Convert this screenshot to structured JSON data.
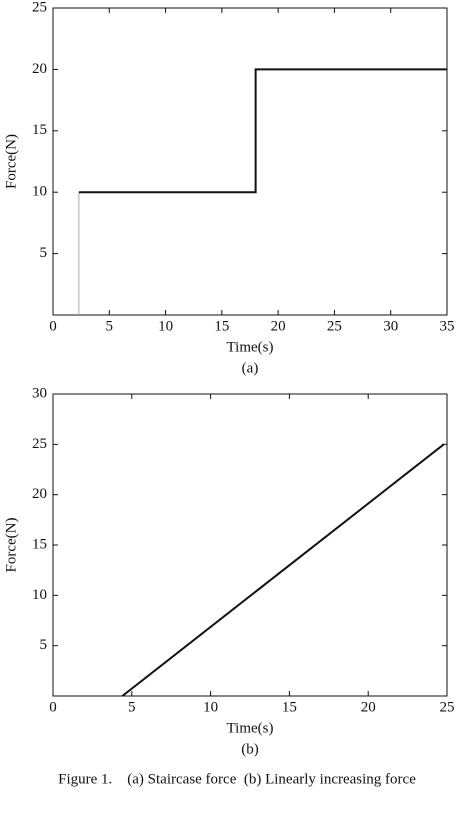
{
  "chart_data": [
    {
      "type": "line",
      "label": "(a)",
      "xlabel": "Time(s)",
      "ylabel": "Force(N)",
      "xlim": [
        0,
        35
      ],
      "xticks": [
        0,
        5,
        10,
        15,
        20,
        25,
        30,
        35
      ],
      "ylim": [
        0,
        25
      ],
      "yticks": [
        5,
        10,
        15,
        20,
        25
      ],
      "series": [
        {
          "color": "#aaaaaa",
          "x": [
            2.3,
            2.3
          ],
          "values": [
            0,
            10
          ]
        },
        {
          "color": "#111111",
          "x": [
            2.3,
            18,
            18,
            35
          ],
          "values": [
            10,
            10,
            20,
            20
          ]
        }
      ]
    },
    {
      "type": "line",
      "label": "(b)",
      "xlabel": "Time(s)",
      "ylabel": "Force(N)",
      "xlim": [
        0,
        25
      ],
      "xticks": [
        0,
        5,
        10,
        15,
        20,
        25
      ],
      "ylim": [
        0,
        30
      ],
      "yticks": [
        5,
        10,
        15,
        20,
        25,
        30
      ],
      "series": [
        {
          "color": "#111111",
          "x": [
            4.4,
            24.8
          ],
          "values": [
            0,
            25
          ]
        }
      ]
    }
  ],
  "caption": "Figure 1.    (a) Staircase force  (b) Linearly increasing force"
}
